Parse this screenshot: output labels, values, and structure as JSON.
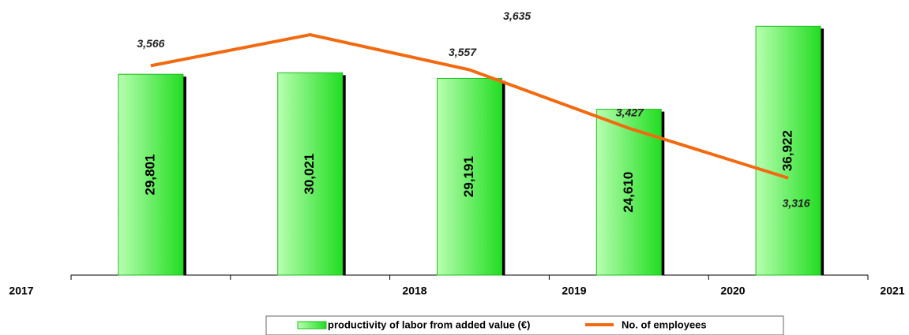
{
  "chart_data": {
    "type": "bar_line",
    "categories": [
      "2017",
      "2018",
      "2019",
      "2020",
      "2021"
    ],
    "series": [
      {
        "name": "productivity of labor from added value (€)",
        "type": "bar",
        "color": "#22dd22",
        "values": [
          29801,
          30021,
          29191,
          24610,
          36922
        ],
        "value_labels": [
          "29,801",
          "30,021",
          "29,191",
          "24,610",
          "36,922"
        ]
      },
      {
        "name": "No. of employees",
        "type": "line",
        "axis": "y2",
        "color": "#f26a10",
        "values": [
          3566,
          3635,
          3557,
          3427,
          3316
        ],
        "value_labels": [
          "3,566",
          "3,635",
          "3,557",
          "3,427",
          "3,316"
        ]
      }
    ],
    "ylim": [
      0,
      40000
    ],
    "y2lim": [
      3100,
      3700
    ]
  }
}
